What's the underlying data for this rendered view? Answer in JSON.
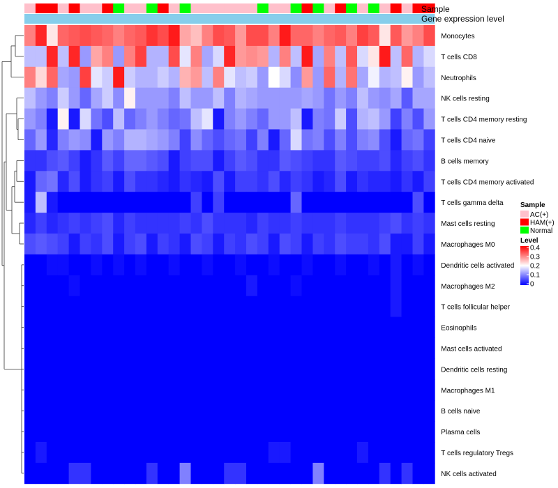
{
  "chart_data": {
    "type": "heatmap",
    "title": "",
    "annotation_tracks": [
      "Sample",
      "Gene expression level"
    ],
    "annotation_colors": {
      "Sample": {
        "AC(+)": "#ffc0cb",
        "HAM(+)": "#ff0000",
        "Normal": "#00ff00"
      },
      "Gene expression level": "#87ceeb"
    },
    "samples": [
      "AC(+)",
      "HAM(+)",
      "HAM(+)",
      "AC(+)",
      "HAM(+)",
      "AC(+)",
      "AC(+)",
      "HAM(+)",
      "Normal",
      "AC(+)",
      "AC(+)",
      "Normal",
      "HAM(+)",
      "AC(+)",
      "Normal",
      "AC(+)",
      "AC(+)",
      "AC(+)",
      "AC(+)",
      "AC(+)",
      "AC(+)",
      "Normal",
      "AC(+)",
      "AC(+)",
      "Normal",
      "HAM(+)",
      "Normal",
      "AC(+)",
      "HAM(+)",
      "Normal",
      "AC(+)",
      "Normal",
      "AC(+)",
      "HAM(+)",
      "AC(+)",
      "HAM(+)",
      "HAM(+)"
    ],
    "rows": [
      "Monocytes",
      "T cells CD8",
      "Neutrophils",
      "NK cells resting",
      "T cells CD4 memory resting",
      "T cells CD4 naive",
      "B cells memory",
      "T cells CD4 memory activated",
      "T cells gamma delta",
      "Mast cells resting",
      "Macrophages M0",
      "Dendritic cells activated",
      "Macrophages M2",
      "T cells follicular helper",
      "Eosinophils",
      "Mast cells activated",
      "Dendritic cells resting",
      "Macrophages M1",
      "B cells naive",
      "Plasma cells",
      "T cells regulatory  Tregs",
      "NK cells activated"
    ],
    "legend": {
      "sample_title": "Sample",
      "sample_entries": [
        {
          "label": "AC(+)",
          "color": "#ffc0cb"
        },
        {
          "label": "HAM(+)",
          "color": "#ff0000"
        },
        {
          "label": "Normal",
          "color": "#00ff00"
        }
      ],
      "level_title": "Level",
      "level_ticks": [
        "0.4",
        "0.3",
        "0.2",
        "0.1",
        "0"
      ],
      "level_min": 0,
      "level_max": 0.4,
      "colors": {
        "low": "#0000ff",
        "mid": "#ffffff",
        "high": "#ff0000"
      }
    },
    "values": [
      [
        0.3,
        0.37,
        0.22,
        0.32,
        0.33,
        0.34,
        0.33,
        0.32,
        0.3,
        0.32,
        0.33,
        0.36,
        0.34,
        0.38,
        0.27,
        0.25,
        0.3,
        0.34,
        0.33,
        0.28,
        0.34,
        0.34,
        0.3,
        0.38,
        0.32,
        0.32,
        0.3,
        0.32,
        0.33,
        0.3,
        0.35,
        0.33,
        0.22,
        0.33,
        0.28,
        0.3,
        0.34
      ],
      [
        0.15,
        0.15,
        0.37,
        0.15,
        0.37,
        0.12,
        0.27,
        0.3,
        0.12,
        0.3,
        0.35,
        0.14,
        0.14,
        0.34,
        0.18,
        0.3,
        0.13,
        0.17,
        0.37,
        0.28,
        0.29,
        0.28,
        0.14,
        0.3,
        0.15,
        0.38,
        0.13,
        0.3,
        0.15,
        0.33,
        0.17,
        0.22,
        0.38,
        0.15,
        0.32,
        0.14,
        0.17
      ],
      [
        0.3,
        0.23,
        0.32,
        0.13,
        0.12,
        0.35,
        0.18,
        0.16,
        0.38,
        0.16,
        0.14,
        0.14,
        0.16,
        0.14,
        0.26,
        0.28,
        0.15,
        0.3,
        0.18,
        0.15,
        0.16,
        0.12,
        0.2,
        0.17,
        0.11,
        0.28,
        0.12,
        0.32,
        0.14,
        0.31,
        0.13,
        0.19,
        0.14,
        0.15,
        0.21,
        0.12,
        0.15
      ],
      [
        0.15,
        0.12,
        0.1,
        0.16,
        0.12,
        0.08,
        0.13,
        0.16,
        0.11,
        0.21,
        0.12,
        0.12,
        0.12,
        0.1,
        0.15,
        0.12,
        0.12,
        0.15,
        0.1,
        0.14,
        0.13,
        0.12,
        0.12,
        0.12,
        0.12,
        0.13,
        0.12,
        0.09,
        0.12,
        0.1,
        0.15,
        0.12,
        0.11,
        0.13,
        0.07,
        0.13,
        0.13
      ],
      [
        0.12,
        0.1,
        0.02,
        0.21,
        0.02,
        0.17,
        0.09,
        0.06,
        0.15,
        0.08,
        0.1,
        0.12,
        0.1,
        0.08,
        0.09,
        0.15,
        0.18,
        0.02,
        0.1,
        0.12,
        0.1,
        0.08,
        0.12,
        0.12,
        0.15,
        0.02,
        0.1,
        0.09,
        0.16,
        0.06,
        0.14,
        0.15,
        0.12,
        0.05,
        0.1,
        0.06,
        0.12
      ],
      [
        0.08,
        0.12,
        0.03,
        0.1,
        0.12,
        0.11,
        0.02,
        0.12,
        0.1,
        0.14,
        0.14,
        0.13,
        0.12,
        0.1,
        0.05,
        0.11,
        0.08,
        0.06,
        0.08,
        0.09,
        0.05,
        0.1,
        0.02,
        0.08,
        0.17,
        0.09,
        0.1,
        0.06,
        0.1,
        0.06,
        0.1,
        0.11,
        0.06,
        0.02,
        0.08,
        0.09,
        0.05
      ],
      [
        0.04,
        0.04,
        0.06,
        0.07,
        0.05,
        0.02,
        0.04,
        0.07,
        0.05,
        0.08,
        0.08,
        0.07,
        0.06,
        0.02,
        0.05,
        0.06,
        0.06,
        0.02,
        0.05,
        0.07,
        0.06,
        0.04,
        0.04,
        0.07,
        0.06,
        0.05,
        0.04,
        0.04,
        0.07,
        0.06,
        0.05,
        0.05,
        0.06,
        0.03,
        0.05,
        0.06,
        0.04
      ],
      [
        0.02,
        0.08,
        0.09,
        0.03,
        0.06,
        0.02,
        0.04,
        0.05,
        0.02,
        0.06,
        0.04,
        0.04,
        0.03,
        0.02,
        0.04,
        0.03,
        0.02,
        0.06,
        0.02,
        0.05,
        0.05,
        0.04,
        0.06,
        0.03,
        0.05,
        0.04,
        0.02,
        0.03,
        0.06,
        0.02,
        0.04,
        0.03,
        0.03,
        0.02,
        0.04,
        0.02,
        0.05
      ],
      [
        0.02,
        0.15,
        0.02,
        0.0,
        0.0,
        0.0,
        0.0,
        0.0,
        0.0,
        0.0,
        0.0,
        0.0,
        0.0,
        0.0,
        0.0,
        0.05,
        0.0,
        0.05,
        0.0,
        0.0,
        0.0,
        0.0,
        0.0,
        0.0,
        0.08,
        0.0,
        0.0,
        0.0,
        0.0,
        0.0,
        0.0,
        0.0,
        0.0,
        0.0,
        0.0,
        0.06,
        0.0
      ],
      [
        0.03,
        0.05,
        0.03,
        0.04,
        0.05,
        0.04,
        0.05,
        0.06,
        0.03,
        0.05,
        0.04,
        0.04,
        0.04,
        0.04,
        0.05,
        0.04,
        0.06,
        0.04,
        0.04,
        0.04,
        0.03,
        0.05,
        0.04,
        0.04,
        0.05,
        0.04,
        0.04,
        0.04,
        0.05,
        0.04,
        0.04,
        0.04,
        0.05,
        0.06,
        0.04,
        0.05,
        0.04
      ],
      [
        0.06,
        0.07,
        0.06,
        0.05,
        0.02,
        0.05,
        0.04,
        0.06,
        0.02,
        0.05,
        0.06,
        0.02,
        0.05,
        0.04,
        0.02,
        0.06,
        0.05,
        0.02,
        0.05,
        0.04,
        0.06,
        0.05,
        0.02,
        0.06,
        0.05,
        0.02,
        0.05,
        0.04,
        0.06,
        0.05,
        0.05,
        0.04,
        0.06,
        0.02,
        0.02,
        0.05,
        0.02
      ],
      [
        0.0,
        0.0,
        0.01,
        0.01,
        0.0,
        0.0,
        0.01,
        0.0,
        0.01,
        0.0,
        0.01,
        0.0,
        0.0,
        0.01,
        0.0,
        0.0,
        0.01,
        0.0,
        0.0,
        0.01,
        0.0,
        0.0,
        0.01,
        0.0,
        0.0,
        0.01,
        0.0,
        0.0,
        0.01,
        0.0,
        0.0,
        0.01,
        0.0,
        0.02,
        0.0,
        0.01,
        0.0
      ],
      [
        0.0,
        0.0,
        0.0,
        0.0,
        0.01,
        0.0,
        0.0,
        0.0,
        0.0,
        0.0,
        0.0,
        0.0,
        0.0,
        0.0,
        0.0,
        0.0,
        0.0,
        0.0,
        0.0,
        0.0,
        0.02,
        0.0,
        0.0,
        0.0,
        0.01,
        0.0,
        0.0,
        0.0,
        0.0,
        0.0,
        0.0,
        0.0,
        0.0,
        0.02,
        0.0,
        0.0,
        0.0
      ],
      [
        0.0,
        0.0,
        0.0,
        0.0,
        0.0,
        0.0,
        0.0,
        0.0,
        0.0,
        0.0,
        0.0,
        0.0,
        0.0,
        0.0,
        0.0,
        0.0,
        0.0,
        0.0,
        0.0,
        0.0,
        0.0,
        0.0,
        0.0,
        0.0,
        0.0,
        0.0,
        0.0,
        0.0,
        0.0,
        0.0,
        0.0,
        0.0,
        0.0,
        0.02,
        0.0,
        0.0,
        0.0
      ],
      [
        0.0,
        0.0,
        0.0,
        0.0,
        0.0,
        0.0,
        0.0,
        0.0,
        0.0,
        0.0,
        0.0,
        0.0,
        0.0,
        0.0,
        0.0,
        0.0,
        0.0,
        0.0,
        0.0,
        0.0,
        0.0,
        0.0,
        0.0,
        0.0,
        0.0,
        0.0,
        0.0,
        0.0,
        0.0,
        0.0,
        0.0,
        0.0,
        0.0,
        0.0,
        0.0,
        0.0,
        0.0
      ],
      [
        0.0,
        0.0,
        0.0,
        0.0,
        0.0,
        0.0,
        0.0,
        0.0,
        0.0,
        0.0,
        0.0,
        0.0,
        0.0,
        0.0,
        0.0,
        0.0,
        0.0,
        0.0,
        0.0,
        0.0,
        0.0,
        0.0,
        0.0,
        0.0,
        0.0,
        0.0,
        0.0,
        0.0,
        0.0,
        0.0,
        0.0,
        0.0,
        0.0,
        0.0,
        0.0,
        0.0,
        0.0
      ],
      [
        0.0,
        0.0,
        0.0,
        0.0,
        0.0,
        0.0,
        0.0,
        0.0,
        0.0,
        0.0,
        0.0,
        0.0,
        0.0,
        0.0,
        0.0,
        0.0,
        0.0,
        0.0,
        0.0,
        0.0,
        0.0,
        0.0,
        0.0,
        0.0,
        0.0,
        0.0,
        0.0,
        0.0,
        0.0,
        0.0,
        0.0,
        0.0,
        0.0,
        0.0,
        0.0,
        0.0,
        0.0
      ],
      [
        0.0,
        0.0,
        0.0,
        0.0,
        0.0,
        0.0,
        0.0,
        0.0,
        0.0,
        0.0,
        0.0,
        0.0,
        0.0,
        0.0,
        0.0,
        0.0,
        0.0,
        0.0,
        0.0,
        0.0,
        0.0,
        0.0,
        0.0,
        0.0,
        0.0,
        0.0,
        0.0,
        0.0,
        0.0,
        0.0,
        0.0,
        0.0,
        0.0,
        0.0,
        0.0,
        0.0,
        0.0
      ],
      [
        0.0,
        0.0,
        0.0,
        0.0,
        0.0,
        0.0,
        0.0,
        0.0,
        0.0,
        0.0,
        0.0,
        0.0,
        0.0,
        0.0,
        0.0,
        0.0,
        0.0,
        0.0,
        0.0,
        0.0,
        0.0,
        0.0,
        0.0,
        0.0,
        0.0,
        0.0,
        0.0,
        0.0,
        0.0,
        0.0,
        0.0,
        0.0,
        0.0,
        0.0,
        0.0,
        0.0,
        0.0
      ],
      [
        0.0,
        0.0,
        0.0,
        0.0,
        0.0,
        0.0,
        0.0,
        0.0,
        0.0,
        0.0,
        0.0,
        0.0,
        0.0,
        0.0,
        0.0,
        0.0,
        0.0,
        0.0,
        0.0,
        0.0,
        0.0,
        0.0,
        0.0,
        0.0,
        0.0,
        0.0,
        0.0,
        0.0,
        0.0,
        0.0,
        0.0,
        0.0,
        0.0,
        0.0,
        0.0,
        0.0,
        0.0
      ],
      [
        0.0,
        0.02,
        0.0,
        0.0,
        0.0,
        0.0,
        0.0,
        0.0,
        0.0,
        0.0,
        0.0,
        0.0,
        0.0,
        0.0,
        0.0,
        0.0,
        0.0,
        0.0,
        0.0,
        0.0,
        0.0,
        0.0,
        0.02,
        0.02,
        0.0,
        0.0,
        0.0,
        0.0,
        0.0,
        0.0,
        0.02,
        0.0,
        0.0,
        0.0,
        0.0,
        0.0,
        0.0
      ],
      [
        0.0,
        0.0,
        0.0,
        0.0,
        0.04,
        0.04,
        0.0,
        0.0,
        0.0,
        0.0,
        0.0,
        0.04,
        0.0,
        0.0,
        0.1,
        0.0,
        0.0,
        0.0,
        0.04,
        0.04,
        0.0,
        0.0,
        0.0,
        0.0,
        0.0,
        0.0,
        0.1,
        0.0,
        0.0,
        0.0,
        0.0,
        0.0,
        0.04,
        0.0,
        0.04,
        0.0,
        0.0
      ]
    ]
  }
}
